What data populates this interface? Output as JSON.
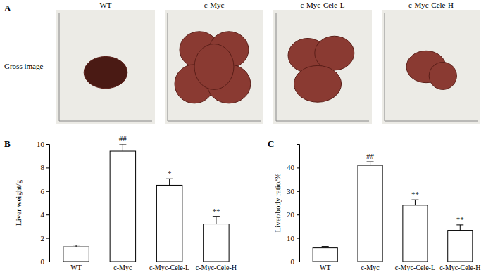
{
  "panel_a": {
    "label": "A",
    "row_label": "Gross image",
    "groups": [
      "WT",
      "c-Myc",
      "c-Myc-Cele-L",
      "c-Myc-Cele-H"
    ]
  },
  "chart_data": [
    {
      "type": "bar",
      "title": "B",
      "y_label": "Liver weight/g",
      "categories": [
        "WT",
        "c-Myc",
        "c-Myc-Cele-L",
        "c-Myc-Cele-H"
      ],
      "values": [
        1.25,
        9.4,
        6.5,
        3.2
      ],
      "errors": [
        0.15,
        0.6,
        0.55,
        0.65
      ],
      "annotations": [
        {
          "index": 1,
          "text": "##"
        },
        {
          "index": 2,
          "text": "*"
        },
        {
          "index": 3,
          "text": "**"
        }
      ],
      "color": "#ffffff",
      "ylim": [
        0,
        10
      ],
      "yticks": [
        0,
        2,
        4,
        6,
        8,
        10
      ],
      "grid": false
    },
    {
      "type": "bar",
      "title": "C",
      "y_label": "Liver/body ratio/%",
      "categories": [
        "WT",
        "c-Myc",
        "c-Myc-Cele-L",
        "c-Myc-Cele-H"
      ],
      "values": [
        5.8,
        41,
        24,
        13.3
      ],
      "errors": [
        0.6,
        1.5,
        2.3,
        2.3
      ],
      "annotations": [
        {
          "index": 1,
          "text": "##"
        },
        {
          "index": 2,
          "text": "**"
        },
        {
          "index": 3,
          "text": "**"
        }
      ],
      "color": "#ffffff",
      "ylim": [
        0,
        50
      ],
      "yticks": [
        0,
        10,
        20,
        30,
        40
      ],
      "grid": false
    }
  ]
}
